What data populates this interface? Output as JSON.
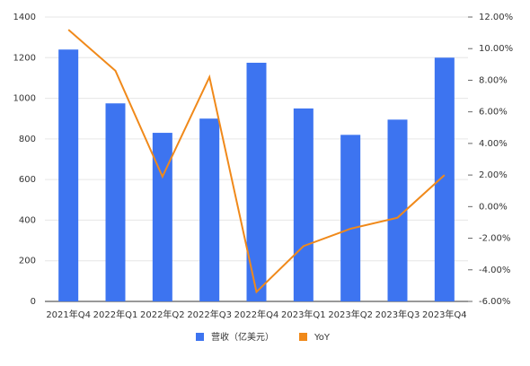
{
  "chart_data": {
    "type": "bar",
    "categories": [
      "2021年Q4",
      "2022年Q1",
      "2022年Q2",
      "2022年Q3",
      "2022年Q4",
      "2023年Q1",
      "2023年Q2",
      "2023年Q3",
      "2023年Q4"
    ],
    "series": [
      {
        "name": "营收（亿美元）",
        "color": "#3d74f0",
        "values": [
          1240,
          975,
          830,
          900,
          1175,
          950,
          820,
          895,
          1200
        ]
      },
      {
        "name": "YoY",
        "color": "#f0891a",
        "type": "line",
        "axis": "y2",
        "values": [
          11.2,
          8.6,
          1.9,
          8.2,
          -5.4,
          -2.5,
          -1.4,
          -0.7,
          2.0
        ]
      }
    ],
    "ylim": [
      0,
      1400
    ],
    "yticks": [
      0,
      200,
      400,
      600,
      800,
      1000,
      1200,
      1400
    ],
    "y2lim": [
      -6,
      12
    ],
    "y2ticks": [
      {
        "value": -6,
        "label": "-6.00%"
      },
      {
        "value": -4,
        "label": "-4.00%"
      },
      {
        "value": -2,
        "label": "-2.00%"
      },
      {
        "value": 0,
        "label": "0.00%"
      },
      {
        "value": 2,
        "label": "2.00%"
      },
      {
        "value": 4,
        "label": "4.00%"
      },
      {
        "value": 6,
        "label": "6.00%"
      },
      {
        "value": 8,
        "label": "8.00%"
      },
      {
        "value": 10,
        "label": "10.00%"
      },
      {
        "value": 12,
        "label": "12.00%"
      }
    ],
    "grid": true
  }
}
